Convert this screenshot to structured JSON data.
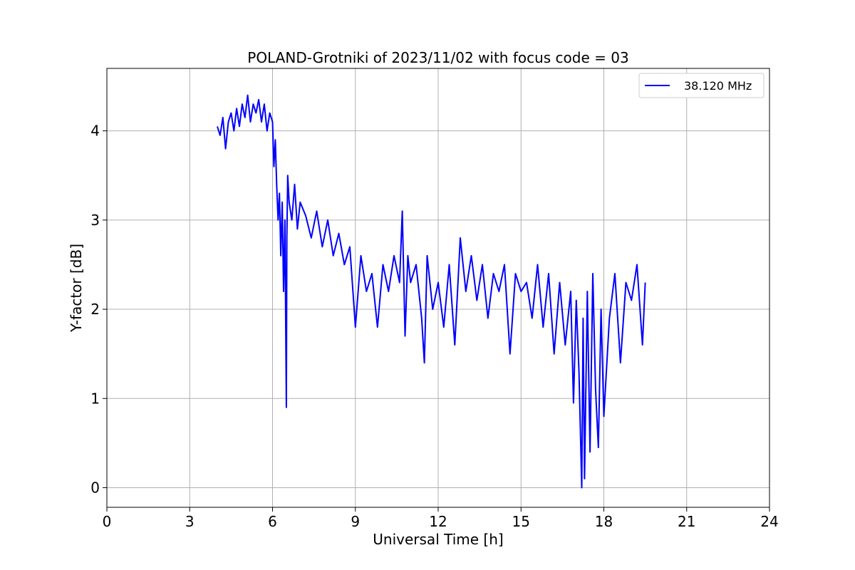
{
  "chart_data": {
    "type": "line",
    "title": "POLAND-Grotniki of 2023/11/02 with focus code = 03",
    "xlabel": "Universal Time [h]",
    "ylabel": "Y-factor [dB]",
    "xlim": [
      0,
      24
    ],
    "ylim": [
      -0.22,
      4.7
    ],
    "xticks": [
      0,
      3,
      6,
      9,
      12,
      15,
      18,
      21,
      24
    ],
    "yticks": [
      0,
      1,
      2,
      3,
      4
    ],
    "grid": true,
    "legend_position": "top-right",
    "series": [
      {
        "name": "38.120 MHz",
        "color": "#0000ff",
        "x": [
          4.0,
          4.1,
          4.2,
          4.3,
          4.4,
          4.5,
          4.6,
          4.7,
          4.8,
          4.9,
          5.0,
          5.1,
          5.2,
          5.3,
          5.4,
          5.5,
          5.6,
          5.7,
          5.8,
          5.9,
          6.0,
          6.05,
          6.1,
          6.15,
          6.2,
          6.25,
          6.3,
          6.35,
          6.4,
          6.45,
          6.5,
          6.52,
          6.55,
          6.6,
          6.7,
          6.8,
          6.9,
          7.0,
          7.2,
          7.4,
          7.6,
          7.8,
          8.0,
          8.2,
          8.4,
          8.6,
          8.8,
          9.0,
          9.2,
          9.4,
          9.6,
          9.8,
          10.0,
          10.2,
          10.4,
          10.6,
          10.7,
          10.8,
          10.9,
          11.0,
          11.2,
          11.4,
          11.5,
          11.6,
          11.8,
          12.0,
          12.2,
          12.4,
          12.6,
          12.8,
          13.0,
          13.2,
          13.4,
          13.6,
          13.8,
          14.0,
          14.2,
          14.4,
          14.6,
          14.8,
          15.0,
          15.2,
          15.4,
          15.6,
          15.8,
          16.0,
          16.2,
          16.4,
          16.6,
          16.8,
          16.9,
          17.0,
          17.1,
          17.2,
          17.25,
          17.3,
          17.4,
          17.5,
          17.6,
          17.7,
          17.8,
          17.9,
          18.0,
          18.2,
          18.4,
          18.6,
          18.8,
          19.0,
          19.2,
          19.4,
          19.5
        ],
        "values": [
          4.05,
          3.95,
          4.15,
          3.8,
          4.1,
          4.2,
          4.0,
          4.25,
          4.05,
          4.3,
          4.15,
          4.4,
          4.1,
          4.3,
          4.2,
          4.35,
          4.1,
          4.3,
          4.0,
          4.2,
          4.1,
          3.6,
          3.9,
          3.4,
          3.0,
          3.3,
          2.6,
          3.2,
          2.2,
          3.0,
          0.9,
          2.8,
          3.5,
          3.2,
          3.0,
          3.4,
          2.9,
          3.2,
          3.05,
          2.8,
          3.1,
          2.7,
          3.0,
          2.6,
          2.85,
          2.5,
          2.7,
          1.8,
          2.6,
          2.2,
          2.4,
          1.8,
          2.5,
          2.2,
          2.6,
          2.3,
          3.1,
          1.7,
          2.6,
          2.3,
          2.5,
          1.9,
          1.4,
          2.6,
          2.0,
          2.3,
          1.8,
          2.5,
          1.6,
          2.8,
          2.2,
          2.6,
          2.1,
          2.5,
          1.9,
          2.4,
          2.2,
          2.5,
          1.5,
          2.4,
          2.2,
          2.3,
          1.9,
          2.5,
          1.8,
          2.4,
          1.5,
          2.3,
          1.6,
          2.2,
          0.95,
          2.1,
          1.3,
          0.0,
          1.9,
          0.1,
          2.2,
          0.4,
          2.4,
          1.1,
          0.45,
          2.0,
          0.8,
          1.9,
          2.4,
          1.4,
          2.3,
          2.1,
          2.5,
          1.6,
          2.3
        ]
      }
    ]
  }
}
